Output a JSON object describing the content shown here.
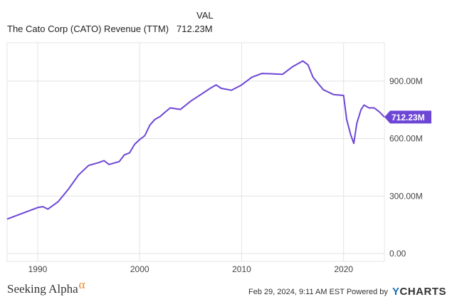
{
  "legend": {
    "column_header": "VAL",
    "series_label": "The Cato Corp (CATO) Revenue (TTM)",
    "series_value": "712.23M"
  },
  "footer": {
    "brand": "Seeking Alpha",
    "brand_mark": "α",
    "timestamp": "Feb 29, 2024, 9:11 AM EST",
    "powered_by": "Powered by",
    "provider_y": "Y",
    "provider_rest": "CHARTS"
  },
  "colors": {
    "line": "#6d46d6",
    "grid": "#e3e3e3",
    "badge": "#6d46d6"
  },
  "chart_data": {
    "type": "line",
    "x_ticks": [
      "1990",
      "2000",
      "2010",
      "2020"
    ],
    "y_ticks": [
      "0.00",
      "300.00M",
      "600.00M",
      "900.00M"
    ],
    "y_tick_values": [
      0,
      300,
      600,
      900
    ],
    "ylim": [
      0,
      1100
    ],
    "y_unit": "M",
    "last_value_label": "712.23M",
    "series": [
      {
        "values": [
          [
            1987.0,
            180
          ],
          [
            1988.0,
            200
          ],
          [
            1989.0,
            220
          ],
          [
            1990.0,
            240
          ],
          [
            1990.5,
            245
          ],
          [
            1991.0,
            232
          ],
          [
            1992.0,
            270
          ],
          [
            1993.0,
            335
          ],
          [
            1994.0,
            410
          ],
          [
            1995.0,
            460
          ],
          [
            1996.0,
            475
          ],
          [
            1996.5,
            485
          ],
          [
            1997.0,
            465
          ],
          [
            1998.0,
            480
          ],
          [
            1998.5,
            515
          ],
          [
            1999.0,
            525
          ],
          [
            1999.5,
            570
          ],
          [
            2000.0,
            595
          ],
          [
            2000.5,
            615
          ],
          [
            2001.0,
            670
          ],
          [
            2001.5,
            700
          ],
          [
            2002.0,
            715
          ],
          [
            2002.5,
            738
          ],
          [
            2003.0,
            760
          ],
          [
            2004.0,
            752
          ],
          [
            2005.0,
            795
          ],
          [
            2006.0,
            830
          ],
          [
            2007.0,
            865
          ],
          [
            2007.5,
            880
          ],
          [
            2008.0,
            862
          ],
          [
            2009.0,
            852
          ],
          [
            2010.0,
            880
          ],
          [
            2011.0,
            920
          ],
          [
            2012.0,
            940
          ],
          [
            2013.0,
            938
          ],
          [
            2014.0,
            935
          ],
          [
            2015.0,
            975
          ],
          [
            2016.0,
            1005
          ],
          [
            2016.5,
            985
          ],
          [
            2017.0,
            920
          ],
          [
            2018.0,
            855
          ],
          [
            2019.0,
            830
          ],
          [
            2020.0,
            825
          ],
          [
            2020.3,
            700
          ],
          [
            2020.7,
            620
          ],
          [
            2021.0,
            575
          ],
          [
            2021.3,
            680
          ],
          [
            2021.7,
            750
          ],
          [
            2022.0,
            775
          ],
          [
            2022.5,
            760
          ],
          [
            2023.0,
            760
          ],
          [
            2023.5,
            740
          ],
          [
            2024.0,
            712.23
          ]
        ]
      }
    ],
    "grid": true,
    "axis_position": "right"
  }
}
